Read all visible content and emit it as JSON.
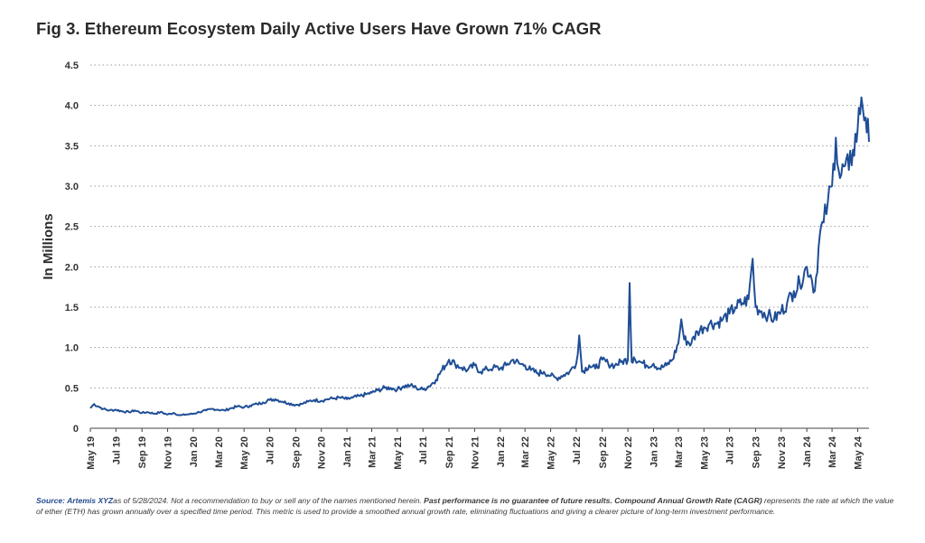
{
  "title": "Fig 3. Ethereum Ecosystem Daily Active Users Have Grown 71% CAGR",
  "footnote": {
    "source_label": "Source: Artemis XYZ",
    "as_of": "as of 5/28/2024. Not a recommendation to buy or sell any of the names mentioned herein.",
    "bold_text": "Past performance is no guarantee of future results. Compound Annual Growth Rate (CAGR)",
    "rest": "represents the rate at which the value of ether (ETH) has grown annually over a specified time period. This metric is used to provide a smoothed annual growth rate, eliminating fluctuations and giving a clearer picture of long-term investment performance."
  },
  "colors": {
    "line": "#1f4e96",
    "grid": "#9a9a9a",
    "axis": "#444444"
  },
  "chart_data": {
    "type": "line",
    "title": "Fig 3. Ethereum Ecosystem Daily Active Users Have Grown 71% CAGR",
    "xlabel": "",
    "ylabel": "In Millions",
    "ylim": [
      0,
      4.5
    ],
    "yticks": [
      "0",
      "0.5",
      "1.0",
      "1.5",
      "2.0",
      "2.5",
      "3.0",
      "3.5",
      "4.0",
      "4.5"
    ],
    "xlim": [
      "2019-05-01",
      "2024-05-28"
    ],
    "grid": "horizontal dotted",
    "legend": "none",
    "x_tick_labels": [
      "May 19",
      "Jul 19",
      "Sep 19",
      "Nov 19",
      "Jan 20",
      "Mar 20",
      "May 20",
      "Jul 20",
      "Sep 20",
      "Nov 20",
      "Jan 21",
      "Mar 21",
      "May 21",
      "Jul 21",
      "Sep 21",
      "Nov 21",
      "Jan 22",
      "Mar 22",
      "May 22",
      "Jul 22",
      "Sep 22",
      "Nov 22",
      "Jan 23",
      "Mar 23",
      "May 23",
      "Jul 23",
      "Sep 23",
      "Nov 23",
      "Jan 24",
      "Mar 24",
      "May 24"
    ],
    "series": [
      {
        "x": [
          "2019-05-01",
          "2019-05-10",
          "2019-05-20",
          "2019-06-01",
          "2019-06-15",
          "2019-07-01",
          "2019-07-15",
          "2019-08-01",
          "2019-08-15",
          "2019-09-01",
          "2019-09-15",
          "2019-10-01",
          "2019-10-15",
          "2019-11-01",
          "2019-11-15",
          "2019-12-01",
          "2019-12-15",
          "2020-01-01",
          "2020-01-15",
          "2020-02-01",
          "2020-02-15",
          "2020-03-01",
          "2020-03-15",
          "2020-04-01",
          "2020-04-15",
          "2020-05-01",
          "2020-05-15",
          "2020-06-01",
          "2020-06-15",
          "2020-07-01",
          "2020-07-15",
          "2020-08-01",
          "2020-08-15",
          "2020-09-01",
          "2020-09-15",
          "2020-10-01",
          "2020-10-15",
          "2020-11-01",
          "2020-11-15",
          "2020-12-01",
          "2020-12-15",
          "2021-01-01",
          "2021-01-15",
          "2021-02-01",
          "2021-02-15",
          "2021-03-01",
          "2021-03-15",
          "2021-04-01",
          "2021-04-15",
          "2021-05-01",
          "2021-05-15",
          "2021-06-01",
          "2021-06-15",
          "2021-07-01",
          "2021-07-15",
          "2021-08-01",
          "2021-08-15",
          "2021-09-01",
          "2021-09-15",
          "2021-10-01",
          "2021-10-15",
          "2021-11-01",
          "2021-11-15",
          "2021-12-01",
          "2021-12-15",
          "2022-01-01",
          "2022-01-15",
          "2022-02-01",
          "2022-02-15",
          "2022-03-01",
          "2022-03-15",
          "2022-04-01",
          "2022-04-15",
          "2022-05-01",
          "2022-05-15",
          "2022-06-01",
          "2022-06-15",
          "2022-07-01",
          "2022-07-08",
          "2022-07-15",
          "2022-08-01",
          "2022-08-15",
          "2022-09-01",
          "2022-09-15",
          "2022-10-01",
          "2022-10-15",
          "2022-11-01",
          "2022-11-05",
          "2022-11-10",
          "2022-11-15",
          "2022-12-01",
          "2022-12-15",
          "2023-01-01",
          "2023-01-15",
          "2023-02-01",
          "2023-02-15",
          "2023-03-01",
          "2023-03-08",
          "2023-03-15",
          "2023-04-01",
          "2023-04-15",
          "2023-05-01",
          "2023-05-15",
          "2023-06-01",
          "2023-06-15",
          "2023-07-01",
          "2023-07-15",
          "2023-08-01",
          "2023-08-15",
          "2023-08-25",
          "2023-09-01",
          "2023-09-15",
          "2023-10-01",
          "2023-10-15",
          "2023-11-01",
          "2023-11-15",
          "2023-12-01",
          "2023-12-15",
          "2024-01-01",
          "2024-01-10",
          "2024-01-20",
          "2024-02-01",
          "2024-02-10",
          "2024-02-20",
          "2024-03-01",
          "2024-03-10",
          "2024-03-20",
          "2024-04-01",
          "2024-04-10",
          "2024-04-20",
          "2024-05-01",
          "2024-05-10",
          "2024-05-20",
          "2024-05-28"
        ],
        "values": [
          0.25,
          0.3,
          0.27,
          0.24,
          0.22,
          0.23,
          0.21,
          0.2,
          0.22,
          0.19,
          0.2,
          0.18,
          0.2,
          0.17,
          0.19,
          0.16,
          0.17,
          0.18,
          0.2,
          0.22,
          0.24,
          0.23,
          0.22,
          0.25,
          0.27,
          0.26,
          0.28,
          0.3,
          0.32,
          0.35,
          0.36,
          0.33,
          0.31,
          0.29,
          0.3,
          0.33,
          0.35,
          0.34,
          0.36,
          0.37,
          0.38,
          0.36,
          0.38,
          0.4,
          0.42,
          0.44,
          0.47,
          0.5,
          0.5,
          0.48,
          0.52,
          0.53,
          0.5,
          0.48,
          0.52,
          0.6,
          0.72,
          0.85,
          0.8,
          0.75,
          0.72,
          0.78,
          0.7,
          0.73,
          0.75,
          0.74,
          0.78,
          0.85,
          0.8,
          0.78,
          0.72,
          0.68,
          0.7,
          0.65,
          0.62,
          0.66,
          0.7,
          0.8,
          1.15,
          0.7,
          0.78,
          0.74,
          0.85,
          0.8,
          0.78,
          0.82,
          0.85,
          1.8,
          0.82,
          0.88,
          0.82,
          0.78,
          0.8,
          0.74,
          0.78,
          0.85,
          1.05,
          1.35,
          1.1,
          1.05,
          1.2,
          1.25,
          1.3,
          1.3,
          1.35,
          1.42,
          1.5,
          1.55,
          1.6,
          2.1,
          1.5,
          1.45,
          1.4,
          1.35,
          1.45,
          1.55,
          1.7,
          1.8,
          2.0,
          1.9,
          1.7,
          2.4,
          2.55,
          2.8,
          3.0,
          3.6,
          3.1,
          3.25,
          3.2,
          3.45,
          3.7,
          4.1,
          3.85,
          3.55
        ]
      }
    ]
  }
}
